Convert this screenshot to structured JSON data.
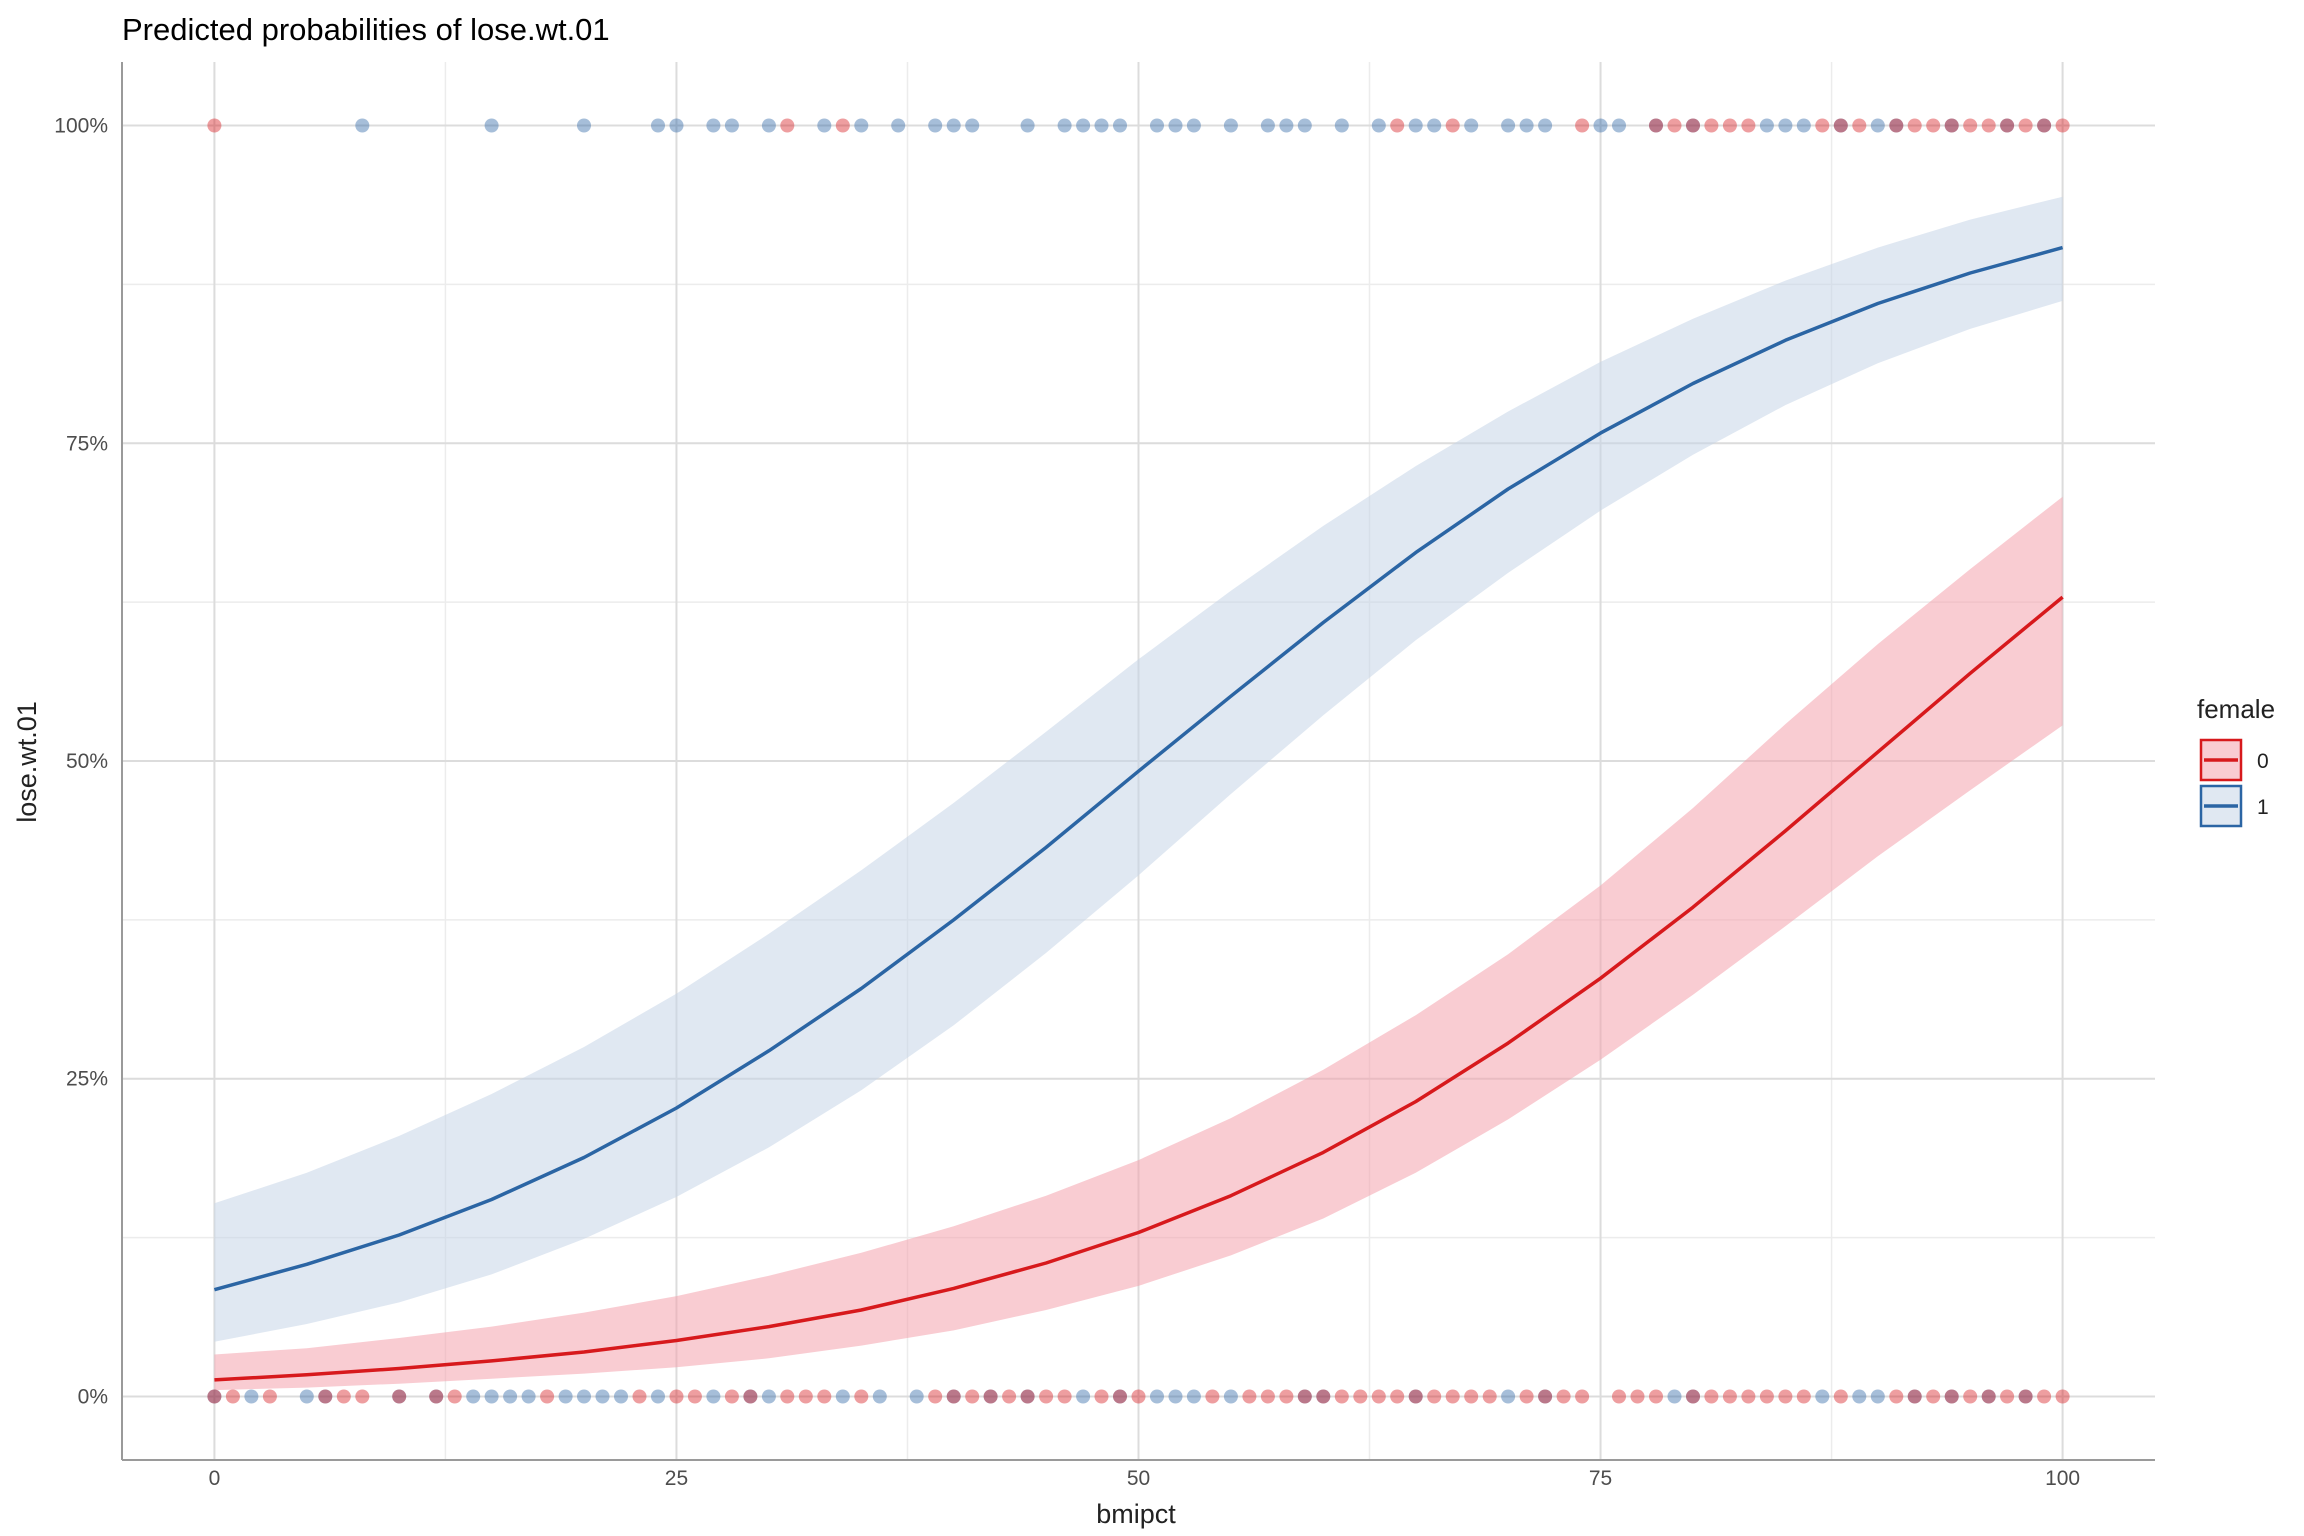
{
  "chart_data": {
    "type": "line",
    "title": "Predicted probabilities of lose.wt.01",
    "xlabel": "bmipct",
    "ylabel": "lose.wt.01",
    "xlim": [
      -5,
      105
    ],
    "ylim": [
      -0.05,
      1.05
    ],
    "x_ticks": [
      0,
      25,
      50,
      75,
      100
    ],
    "x_tick_labels": [
      "0",
      "25",
      "50",
      "75",
      "100"
    ],
    "y_ticks": [
      0,
      0.25,
      0.5,
      0.75,
      1
    ],
    "y_tick_labels": [
      "0%",
      "25%",
      "50%",
      "75%",
      "100%"
    ],
    "y_minor_ticks": [
      0.125,
      0.375,
      0.625,
      0.875
    ],
    "x_minor_ticks": [
      12.5,
      37.5,
      62.5,
      87.5
    ],
    "grid": true,
    "legend": {
      "title": "female",
      "position": "right"
    },
    "x": [
      0,
      5,
      10,
      15,
      20,
      25,
      30,
      35,
      40,
      45,
      50,
      55,
      60,
      65,
      70,
      75,
      80,
      85,
      90,
      95,
      100
    ],
    "series": [
      {
        "name": "0",
        "color": "#d7191c",
        "band_color": "#f4a3ad",
        "values": [
          0.013,
          0.017,
          0.022,
          0.028,
          0.035,
          0.044,
          0.055,
          0.068,
          0.085,
          0.105,
          0.129,
          0.158,
          0.192,
          0.232,
          0.278,
          0.329,
          0.385,
          0.445,
          0.507,
          0.569,
          0.629
        ],
        "lower": [
          0.005,
          0.007,
          0.01,
          0.014,
          0.018,
          0.023,
          0.03,
          0.04,
          0.052,
          0.068,
          0.087,
          0.111,
          0.14,
          0.176,
          0.218,
          0.265,
          0.316,
          0.37,
          0.425,
          0.477,
          0.528
        ],
        "upper": [
          0.033,
          0.038,
          0.046,
          0.055,
          0.066,
          0.079,
          0.095,
          0.113,
          0.134,
          0.158,
          0.186,
          0.219,
          0.257,
          0.3,
          0.348,
          0.402,
          0.463,
          0.529,
          0.592,
          0.651,
          0.708
        ]
      },
      {
        "name": "1",
        "color": "#2b65a4",
        "band_color": "#c6d6e8",
        "values": [
          0.084,
          0.104,
          0.127,
          0.155,
          0.188,
          0.227,
          0.272,
          0.321,
          0.375,
          0.432,
          0.492,
          0.551,
          0.609,
          0.664,
          0.714,
          0.758,
          0.797,
          0.831,
          0.86,
          0.884,
          0.904
        ],
        "lower": [
          0.043,
          0.057,
          0.074,
          0.096,
          0.124,
          0.157,
          0.196,
          0.241,
          0.292,
          0.349,
          0.41,
          0.474,
          0.536,
          0.595,
          0.648,
          0.697,
          0.741,
          0.78,
          0.813,
          0.84,
          0.862
        ],
        "upper": [
          0.152,
          0.176,
          0.205,
          0.238,
          0.275,
          0.317,
          0.364,
          0.414,
          0.467,
          0.523,
          0.58,
          0.634,
          0.685,
          0.732,
          0.775,
          0.814,
          0.848,
          0.878,
          0.904,
          0.926,
          0.944
        ]
      }
    ],
    "observations": {
      "female_0_y1": [
        0,
        31,
        34,
        64,
        67,
        74,
        78,
        79,
        80,
        81,
        82,
        83,
        87,
        88,
        89,
        91,
        92,
        93,
        94,
        95,
        96,
        97,
        98,
        99,
        100
      ],
      "female_1_y1": [
        8,
        15,
        20,
        24,
        25,
        27,
        28,
        30,
        33,
        35,
        37,
        39,
        40,
        41,
        44,
        46,
        47,
        48,
        49,
        51,
        52,
        53,
        55,
        57,
        58,
        59,
        61,
        63,
        65,
        66,
        68,
        70,
        71,
        72,
        75,
        76,
        78,
        80,
        84,
        85,
        86,
        88,
        90,
        91,
        94,
        97,
        99
      ],
      "female_0_y0": [
        0,
        1,
        3,
        6,
        7,
        8,
        10,
        12,
        13,
        18,
        23,
        25,
        26,
        28,
        29,
        31,
        32,
        33,
        35,
        39,
        40,
        41,
        42,
        43,
        44,
        45,
        46,
        48,
        49,
        50,
        54,
        56,
        57,
        58,
        59,
        60,
        61,
        62,
        63,
        64,
        65,
        66,
        67,
        68,
        69,
        71,
        72,
        73,
        74,
        76,
        77,
        78,
        80,
        81,
        82,
        83,
        84,
        85,
        86,
        88,
        91,
        92,
        93,
        94,
        95,
        96,
        97,
        98,
        99,
        100
      ],
      "female_1_y0": [
        0,
        2,
        5,
        6,
        10,
        12,
        14,
        15,
        16,
        17,
        19,
        20,
        21,
        22,
        24,
        27,
        29,
        30,
        34,
        36,
        38,
        40,
        42,
        44,
        47,
        49,
        51,
        52,
        53,
        55,
        59,
        60,
        65,
        70,
        72,
        79,
        80,
        87,
        89,
        90,
        92,
        94,
        96,
        98
      ]
    }
  }
}
